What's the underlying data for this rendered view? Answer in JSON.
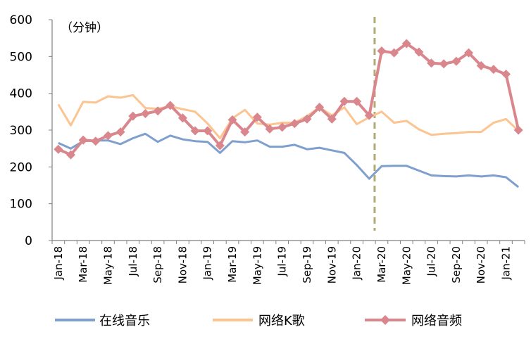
{
  "chart_data": {
    "type": "line",
    "title": "",
    "unit_label": "（分钟）",
    "xlabel": "",
    "ylabel": "",
    "ylim": [
      0,
      600
    ],
    "yticks": [
      0,
      100,
      200,
      300,
      400,
      500,
      600
    ],
    "grid": false,
    "legend_position": "bottom",
    "x": [
      "Jan-18",
      "Feb-18",
      "Mar-18",
      "Apr-18",
      "May-18",
      "Jun-18",
      "Jul-18",
      "Aug-18",
      "Sep-18",
      "Oct-18",
      "Nov-18",
      "Dec-18",
      "Jan-19",
      "Feb-19",
      "Mar-19",
      "Apr-19",
      "May-19",
      "Jun-19",
      "Jul-19",
      "Aug-19",
      "Sep-19",
      "Oct-19",
      "Nov-19",
      "Dec-19",
      "Jan-20",
      "Feb-20",
      "Mar-20",
      "Apr-20",
      "May-20",
      "Jun-20",
      "Jul-20",
      "Aug-20",
      "Sep-20",
      "Oct-20",
      "Nov-20",
      "Dec-20",
      "Jan-21",
      "Feb-21"
    ],
    "xtick_labels": [
      "Jan-18",
      "Mar-18",
      "May-18",
      "Jul-18",
      "Sep-18",
      "Nov-18",
      "Jan-19",
      "Mar-19",
      "May-19",
      "Jul-19",
      "Sep-19",
      "Nov-19",
      "Jan-20",
      "Mar-20",
      "May-20",
      "Jul-20",
      "Sep-20",
      "Nov-20",
      "Jan-21"
    ],
    "divider_at": "Mar-20",
    "series": [
      {
        "name": "在线音乐",
        "color": "#7f9fce",
        "marker": "none",
        "values": [
          265,
          250,
          270,
          272,
          272,
          262,
          278,
          290,
          268,
          285,
          275,
          270,
          268,
          238,
          270,
          267,
          272,
          255,
          255,
          260,
          248,
          252,
          245,
          238,
          205,
          168,
          202,
          203,
          203,
          190,
          177,
          175,
          174,
          177,
          174,
          177,
          172,
          145
        ]
      },
      {
        "name": "网络K歌",
        "color": "#fbc491",
        "marker": "none",
        "values": [
          370,
          313,
          377,
          375,
          392,
          388,
          395,
          360,
          358,
          365,
          357,
          350,
          318,
          278,
          332,
          355,
          318,
          315,
          320,
          320,
          338,
          362,
          340,
          362,
          316,
          335,
          350,
          320,
          325,
          302,
          287,
          290,
          292,
          295,
          295,
          320,
          330,
          298
        ]
      },
      {
        "name": "网络音频",
        "color": "#d9868c",
        "marker": "diamond",
        "values": [
          248,
          233,
          273,
          270,
          285,
          295,
          338,
          345,
          352,
          367,
          333,
          298,
          298,
          258,
          328,
          295,
          335,
          303,
          308,
          318,
          330,
          362,
          330,
          378,
          378,
          340,
          515,
          510,
          535,
          512,
          482,
          480,
          487,
          510,
          475,
          465,
          452,
          300
        ]
      }
    ]
  }
}
